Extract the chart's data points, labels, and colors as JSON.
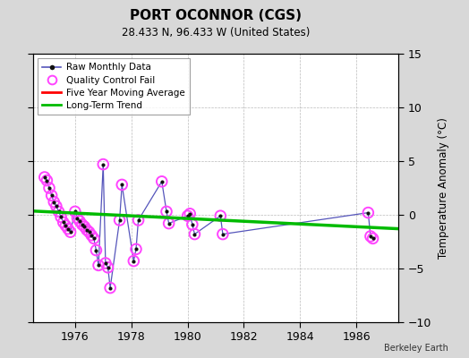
{
  "title": "PORT OCONNOR (CGS)",
  "subtitle": "28.433 N, 96.433 W (United States)",
  "ylabel": "Temperature Anomaly (°C)",
  "credit": "Berkeley Earth",
  "ylim": [
    -10,
    15
  ],
  "yticks": [
    -10,
    -5,
    0,
    5,
    10,
    15
  ],
  "xlim": [
    1974.5,
    1987.5
  ],
  "xticks": [
    1976,
    1978,
    1980,
    1982,
    1984,
    1986
  ],
  "bg_color": "#d8d8d8",
  "plot_bg_color": "#ffffff",
  "raw_line_color": "#5555bb",
  "raw_dot_color": "#111111",
  "qc_color": "#ff44ff",
  "moving_avg_color": "#ff0000",
  "trend_color": "#00bb00",
  "raw_x": [
    1974.917,
    1975.0,
    1975.083,
    1975.167,
    1975.25,
    1975.333,
    1975.417,
    1975.5,
    1975.583,
    1975.667,
    1975.75,
    1975.833,
    1976.0,
    1976.083,
    1976.167,
    1976.25,
    1976.333,
    1976.417,
    1976.5,
    1976.583,
    1976.667,
    1976.75,
    1976.833,
    1977.0,
    1977.083,
    1977.167,
    1977.25,
    1977.583,
    1977.667,
    1978.083,
    1978.167,
    1978.25,
    1979.083,
    1979.25,
    1979.333,
    1980.0,
    1980.083,
    1980.167,
    1980.25,
    1981.167,
    1981.25,
    1986.417,
    1986.5,
    1986.583
  ],
  "raw_y": [
    3.5,
    3.2,
    2.5,
    1.8,
    1.2,
    0.8,
    0.3,
    -0.2,
    -0.7,
    -1.0,
    -1.3,
    -1.6,
    0.3,
    -0.3,
    -0.6,
    -0.9,
    -1.1,
    -1.4,
    -1.6,
    -1.9,
    -2.2,
    -3.3,
    -4.7,
    4.7,
    -4.5,
    -4.9,
    -6.8,
    -0.5,
    2.8,
    -4.3,
    -3.2,
    -0.5,
    3.1,
    0.3,
    -0.8,
    -0.1,
    0.1,
    -0.9,
    -1.8,
    -0.1,
    -1.8,
    0.2,
    -2.0,
    -2.2
  ],
  "trend_x": [
    1974.5,
    1987.5
  ],
  "trend_y": [
    0.35,
    -1.3
  ]
}
